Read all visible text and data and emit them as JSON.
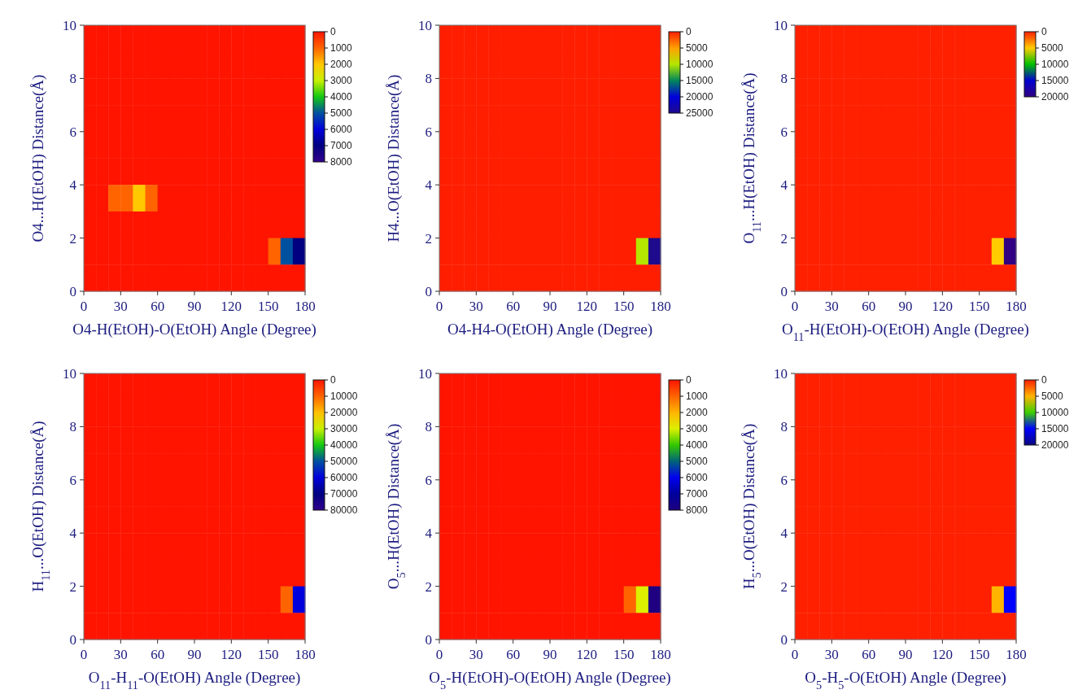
{
  "chart_data": [
    {
      "type": "heatmap",
      "xlabel": "O4-H(EtOH)-O(EtOH) Angle (Degree)",
      "ylabel": "O4...H(EtOH) Distance(Å)",
      "xlim": [
        0,
        180
      ],
      "xticks": [
        0,
        30,
        60,
        90,
        120,
        150,
        180
      ],
      "ylim": [
        0,
        10
      ],
      "yticks": [
        0,
        2,
        4,
        6,
        8,
        10
      ],
      "cticks": [
        0,
        1000,
        2000,
        3000,
        4000,
        5000,
        6000,
        7000,
        8000
      ],
      "colors": [
        "#ff1400",
        "#ff6400",
        "#ffc800",
        "#c8f000",
        "#14c814",
        "#0050a0",
        "#0000dc",
        "#000080",
        "#32008c"
      ],
      "cells": [
        [
          0,
          0,
          0,
          0,
          0,
          0,
          0,
          0,
          0,
          0,
          0,
          0,
          0,
          0,
          0,
          0,
          0,
          0
        ],
        [
          0,
          0,
          0,
          0,
          0,
          0,
          0,
          0,
          0,
          0,
          0,
          0,
          0,
          0,
          0,
          0,
          0,
          0
        ],
        [
          0,
          0,
          0,
          0,
          0,
          0,
          0,
          0,
          0,
          0,
          0,
          0,
          0,
          0,
          0,
          0,
          0,
          0
        ],
        [
          0,
          0,
          0,
          0,
          0,
          0,
          0,
          0,
          0,
          0,
          0,
          0,
          0,
          0,
          0,
          0,
          0,
          0
        ],
        [
          0,
          0,
          0,
          0,
          0,
          0,
          0,
          0,
          0,
          0,
          0,
          0,
          0,
          0,
          0,
          0,
          0,
          0
        ],
        [
          0,
          0,
          0,
          0,
          0,
          0,
          0,
          0,
          0,
          0,
          0,
          0,
          0,
          0,
          0,
          0,
          0,
          0
        ],
        [
          0,
          0,
          1000,
          1000,
          2000,
          1000,
          0,
          0,
          0,
          0,
          0,
          0,
          0,
          0,
          0,
          0,
          0,
          0
        ],
        [
          0,
          0,
          0,
          0,
          0,
          0,
          0,
          0,
          0,
          0,
          0,
          0,
          0,
          0,
          0,
          0,
          0,
          0
        ],
        [
          0,
          0,
          0,
          0,
          0,
          0,
          0,
          0,
          0,
          0,
          0,
          0,
          0,
          0,
          0,
          1000,
          5000,
          7000
        ],
        [
          0,
          0,
          0,
          0,
          0,
          0,
          0,
          0,
          0,
          0,
          0,
          0,
          0,
          0,
          0,
          0,
          0,
          0
        ]
      ]
    },
    {
      "type": "heatmap",
      "xlabel": "O4-H4-O(EtOH) Angle (Degree)",
      "ylabel": "H4...O(EtOH) Distance(Å)",
      "xlim": [
        0,
        180
      ],
      "xticks": [
        0,
        30,
        60,
        90,
        120,
        150,
        180
      ],
      "ylim": [
        0,
        10
      ],
      "yticks": [
        0,
        2,
        4,
        6,
        8,
        10
      ],
      "cticks": [
        0,
        5000,
        10000,
        15000,
        20000,
        25000
      ],
      "colors": [
        "#ff1e00",
        "#ffa000",
        "#b4e600",
        "#00875a",
        "#0000dc",
        "#1e0a8c"
      ],
      "cells": [
        [
          0,
          0,
          0,
          0,
          0,
          0,
          0,
          0,
          0,
          0,
          0,
          0,
          0,
          0,
          0,
          0,
          0,
          0
        ],
        [
          0,
          0,
          0,
          0,
          0,
          0,
          0,
          0,
          0,
          0,
          0,
          0,
          0,
          0,
          0,
          0,
          0,
          0
        ],
        [
          0,
          0,
          0,
          0,
          0,
          0,
          0,
          0,
          0,
          0,
          0,
          0,
          0,
          0,
          0,
          0,
          0,
          0
        ],
        [
          0,
          0,
          0,
          0,
          0,
          0,
          0,
          0,
          0,
          0,
          0,
          0,
          0,
          0,
          0,
          0,
          0,
          0
        ],
        [
          0,
          0,
          0,
          0,
          0,
          0,
          0,
          0,
          0,
          0,
          0,
          0,
          0,
          0,
          0,
          0,
          0,
          0
        ],
        [
          0,
          0,
          0,
          0,
          0,
          0,
          0,
          0,
          0,
          0,
          0,
          0,
          0,
          0,
          0,
          0,
          0,
          0
        ],
        [
          0,
          0,
          0,
          0,
          0,
          0,
          0,
          0,
          0,
          0,
          0,
          0,
          0,
          0,
          0,
          0,
          0,
          0
        ],
        [
          0,
          0,
          0,
          0,
          0,
          0,
          0,
          0,
          0,
          0,
          0,
          0,
          0,
          0,
          0,
          0,
          0,
          0
        ],
        [
          0,
          0,
          0,
          0,
          0,
          0,
          0,
          0,
          0,
          0,
          0,
          0,
          0,
          0,
          0,
          0,
          10000,
          25000
        ],
        [
          0,
          0,
          0,
          0,
          0,
          0,
          0,
          0,
          0,
          0,
          0,
          0,
          0,
          0,
          0,
          0,
          0,
          0
        ]
      ]
    },
    {
      "type": "heatmap",
      "xlabel": "O$_{11}$-H(EtOH)-O(EtOH) Angle (Degree)",
      "ylabel": "O$_{11}$...H(EtOH) Distance(Å)",
      "xlim": [
        0,
        180
      ],
      "xticks": [
        0,
        30,
        60,
        90,
        120,
        150,
        180
      ],
      "ylim": [
        0,
        10
      ],
      "yticks": [
        0,
        2,
        4,
        6,
        8,
        10
      ],
      "cticks": [
        0,
        5000,
        10000,
        15000,
        20000
      ],
      "colors": [
        "#ff2000",
        "#ffcc00",
        "#00c000",
        "#0000d0",
        "#320082"
      ],
      "cells": [
        [
          0,
          0,
          0,
          0,
          0,
          0,
          0,
          0,
          0,
          0,
          0,
          0,
          0,
          0,
          0,
          0,
          0,
          0
        ],
        [
          0,
          0,
          0,
          0,
          0,
          0,
          0,
          0,
          0,
          0,
          0,
          0,
          0,
          0,
          0,
          0,
          0,
          0
        ],
        [
          0,
          0,
          0,
          0,
          0,
          0,
          0,
          0,
          0,
          0,
          0,
          0,
          0,
          0,
          0,
          0,
          0,
          0
        ],
        [
          0,
          0,
          0,
          0,
          0,
          0,
          0,
          0,
          0,
          0,
          0,
          0,
          0,
          0,
          0,
          0,
          0,
          0
        ],
        [
          0,
          0,
          0,
          0,
          0,
          0,
          0,
          0,
          0,
          0,
          0,
          0,
          0,
          0,
          0,
          0,
          0,
          0
        ],
        [
          0,
          0,
          0,
          0,
          0,
          0,
          0,
          0,
          0,
          0,
          0,
          0,
          0,
          0,
          0,
          0,
          0,
          0
        ],
        [
          0,
          0,
          0,
          0,
          0,
          0,
          0,
          0,
          0,
          0,
          0,
          0,
          0,
          0,
          0,
          0,
          0,
          0
        ],
        [
          0,
          0,
          0,
          0,
          0,
          0,
          0,
          0,
          0,
          0,
          0,
          0,
          0,
          0,
          0,
          0,
          0,
          0
        ],
        [
          0,
          0,
          0,
          0,
          0,
          0,
          0,
          0,
          0,
          0,
          0,
          0,
          0,
          0,
          0,
          0,
          5000,
          20000
        ],
        [
          0,
          0,
          0,
          0,
          0,
          0,
          0,
          0,
          0,
          0,
          0,
          0,
          0,
          0,
          0,
          0,
          0,
          0
        ]
      ]
    },
    {
      "type": "heatmap",
      "xlabel": "O$_{11}$-H$_{11}$-O(EtOH) Angle (Degree)",
      "ylabel": "H$_{11}$...O(EtOH) Distance(Å)",
      "xlim": [
        0,
        180
      ],
      "xticks": [
        0,
        30,
        60,
        90,
        120,
        150,
        180
      ],
      "ylim": [
        0,
        10
      ],
      "yticks": [
        0,
        2,
        4,
        6,
        8,
        10
      ],
      "cticks": [
        0,
        10000,
        20000,
        30000,
        40000,
        50000,
        60000,
        70000,
        80000
      ],
      "colors": [
        "#ff1400",
        "#ff6400",
        "#ffc000",
        "#c8f000",
        "#14c814",
        "#0050a0",
        "#0000dc",
        "#000080",
        "#32008c"
      ],
      "cells": [
        [
          0,
          0,
          0,
          0,
          0,
          0,
          0,
          0,
          0,
          0,
          0,
          0,
          0,
          0,
          0,
          0,
          0,
          0
        ],
        [
          0,
          0,
          0,
          0,
          0,
          0,
          0,
          0,
          0,
          0,
          0,
          0,
          0,
          0,
          0,
          0,
          0,
          0
        ],
        [
          0,
          0,
          0,
          0,
          0,
          0,
          0,
          0,
          0,
          0,
          0,
          0,
          0,
          0,
          0,
          0,
          0,
          0
        ],
        [
          0,
          0,
          0,
          0,
          0,
          0,
          0,
          0,
          0,
          0,
          0,
          0,
          0,
          0,
          0,
          0,
          0,
          0
        ],
        [
          0,
          0,
          0,
          0,
          0,
          0,
          0,
          0,
          0,
          0,
          0,
          0,
          0,
          0,
          0,
          0,
          0,
          0
        ],
        [
          0,
          0,
          0,
          0,
          0,
          0,
          0,
          0,
          0,
          0,
          0,
          0,
          0,
          0,
          0,
          0,
          0,
          0
        ],
        [
          0,
          0,
          0,
          0,
          0,
          0,
          0,
          0,
          0,
          0,
          0,
          0,
          0,
          0,
          0,
          0,
          0,
          0
        ],
        [
          0,
          0,
          0,
          0,
          0,
          0,
          0,
          0,
          0,
          0,
          0,
          0,
          0,
          0,
          0,
          0,
          0,
          0
        ],
        [
          0,
          0,
          0,
          0,
          0,
          0,
          0,
          0,
          0,
          0,
          0,
          0,
          0,
          0,
          0,
          0,
          10000,
          60000
        ],
        [
          0,
          0,
          0,
          0,
          0,
          0,
          0,
          0,
          0,
          0,
          0,
          0,
          0,
          0,
          0,
          0,
          0,
          0
        ]
      ]
    },
    {
      "type": "heatmap",
      "xlabel": "O$_{5}$-H(EtOH)-O(EtOH) Angle (Degree)",
      "ylabel": "O$_{5}$...H(EtOH) Distance(Å)",
      "xlim": [
        0,
        180
      ],
      "xticks": [
        0,
        30,
        60,
        90,
        120,
        150,
        180
      ],
      "ylim": [
        0,
        10
      ],
      "yticks": [
        0,
        2,
        4,
        6,
        8,
        10
      ],
      "cticks": [
        0,
        1000,
        2000,
        3000,
        4000,
        5000,
        6000,
        7000,
        8000
      ],
      "colors": [
        "#ff1400",
        "#ff6400",
        "#ffb400",
        "#dcf000",
        "#32c800",
        "#006478",
        "#0000f0",
        "#00009b",
        "#1e0080"
      ],
      "cells": [
        [
          0,
          0,
          0,
          0,
          0,
          0,
          0,
          0,
          0,
          0,
          0,
          0,
          0,
          0,
          0,
          0,
          0,
          0
        ],
        [
          0,
          0,
          0,
          0,
          0,
          0,
          0,
          0,
          0,
          0,
          0,
          0,
          0,
          0,
          0,
          0,
          0,
          0
        ],
        [
          0,
          0,
          0,
          0,
          0,
          0,
          0,
          0,
          0,
          0,
          0,
          0,
          0,
          0,
          0,
          0,
          0,
          0
        ],
        [
          0,
          0,
          0,
          0,
          0,
          0,
          0,
          0,
          0,
          0,
          0,
          0,
          0,
          0,
          0,
          0,
          0,
          0
        ],
        [
          0,
          0,
          0,
          0,
          0,
          0,
          0,
          0,
          0,
          0,
          0,
          0,
          0,
          0,
          0,
          0,
          0,
          0
        ],
        [
          0,
          0,
          0,
          0,
          0,
          0,
          0,
          0,
          0,
          0,
          0,
          0,
          0,
          0,
          0,
          0,
          0,
          0
        ],
        [
          0,
          0,
          0,
          0,
          0,
          0,
          0,
          0,
          0,
          0,
          0,
          0,
          0,
          0,
          0,
          0,
          0,
          0
        ],
        [
          0,
          0,
          0,
          0,
          0,
          0,
          0,
          0,
          0,
          0,
          0,
          0,
          0,
          0,
          0,
          0,
          0,
          0
        ],
        [
          0,
          0,
          0,
          0,
          0,
          0,
          0,
          0,
          0,
          0,
          0,
          0,
          0,
          0,
          0,
          1000,
          3000,
          8000
        ],
        [
          0,
          0,
          0,
          0,
          0,
          0,
          0,
          0,
          0,
          0,
          0,
          0,
          0,
          0,
          0,
          0,
          0,
          0
        ]
      ]
    },
    {
      "type": "heatmap",
      "xlabel": "O$_{5}$-H$_{5}$-O(EtOH) Angle (Degree)",
      "ylabel": "H$_{5}$...O(EtOH) Distance(Å)",
      "xlim": [
        0,
        180
      ],
      "xticks": [
        0,
        30,
        60,
        90,
        120,
        150,
        180
      ],
      "ylim": [
        0,
        10
      ],
      "yticks": [
        0,
        2,
        4,
        6,
        8,
        10
      ],
      "cticks": [
        0,
        5000,
        10000,
        15000,
        20000
      ],
      "colors": [
        "#ff2000",
        "#ffb400",
        "#3cd000",
        "#0000ff",
        "#0a0a80"
      ],
      "cells": [
        [
          0,
          0,
          0,
          0,
          0,
          0,
          0,
          0,
          0,
          0,
          0,
          0,
          0,
          0,
          0,
          0,
          0,
          0
        ],
        [
          0,
          0,
          0,
          0,
          0,
          0,
          0,
          0,
          0,
          0,
          0,
          0,
          0,
          0,
          0,
          0,
          0,
          0
        ],
        [
          0,
          0,
          0,
          0,
          0,
          0,
          0,
          0,
          0,
          0,
          0,
          0,
          0,
          0,
          0,
          0,
          0,
          0
        ],
        [
          0,
          0,
          0,
          0,
          0,
          0,
          0,
          0,
          0,
          0,
          0,
          0,
          0,
          0,
          0,
          0,
          0,
          0
        ],
        [
          0,
          0,
          0,
          0,
          0,
          0,
          0,
          0,
          0,
          0,
          0,
          0,
          0,
          0,
          0,
          0,
          0,
          0
        ],
        [
          0,
          0,
          0,
          0,
          0,
          0,
          0,
          0,
          0,
          0,
          0,
          0,
          0,
          0,
          0,
          0,
          0,
          0
        ],
        [
          0,
          0,
          0,
          0,
          0,
          0,
          0,
          0,
          0,
          0,
          0,
          0,
          0,
          0,
          0,
          0,
          0,
          0
        ],
        [
          0,
          0,
          0,
          0,
          0,
          0,
          0,
          0,
          0,
          0,
          0,
          0,
          0,
          0,
          0,
          0,
          0,
          0
        ],
        [
          0,
          0,
          0,
          0,
          0,
          0,
          0,
          0,
          0,
          0,
          0,
          0,
          0,
          0,
          0,
          0,
          5000,
          15000
        ],
        [
          0,
          0,
          0,
          0,
          0,
          0,
          0,
          0,
          0,
          0,
          0,
          0,
          0,
          0,
          0,
          0,
          0,
          0
        ]
      ]
    }
  ]
}
